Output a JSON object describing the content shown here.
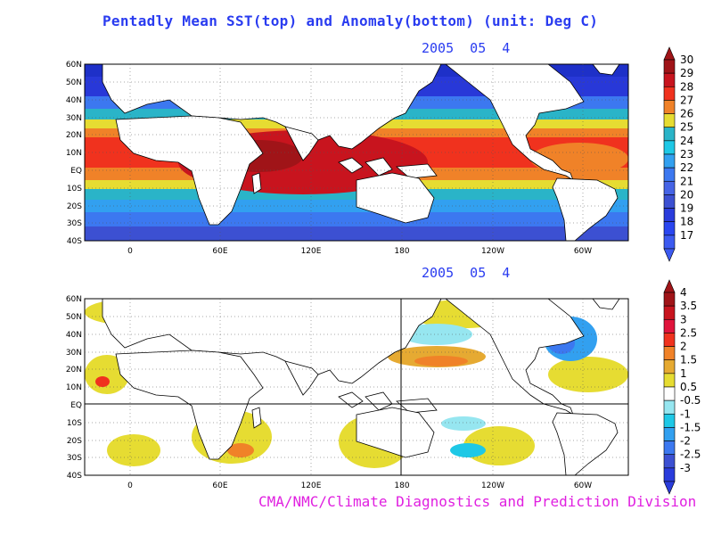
{
  "title": "Pentadly Mean SST(top) and Anomaly(bottom) (unit: Deg C)",
  "top_panel": {
    "date": "2005  05  4"
  },
  "bottom_panel": {
    "date": "2005  05  4"
  },
  "axes": {
    "lat_labels": [
      "60N",
      "50N",
      "40N",
      "30N",
      "20N",
      "10N",
      "EQ",
      "10S",
      "20S",
      "30S",
      "40S"
    ],
    "lon_labels": [
      "0",
      "60E",
      "120E",
      "180",
      "120W",
      "60W"
    ]
  },
  "sst_colorbar": {
    "labels": [
      "30",
      "29",
      "28",
      "27",
      "26",
      "25",
      "24",
      "23",
      "22",
      "21",
      "20",
      "19",
      "18",
      "17"
    ],
    "colors": [
      "#a01418",
      "#c8141e",
      "#f0321e",
      "#f08228",
      "#e6dc32",
      "#2ab4c8",
      "#1ec8e6",
      "#32a0f0",
      "#3c78f0",
      "#4664e6",
      "#3c50d2",
      "#2a3cdc",
      "#2a46f0",
      "#3c5af0"
    ]
  },
  "anom_colorbar": {
    "labels": [
      "4",
      "3.5",
      "3",
      "2.5",
      "2",
      "1.5",
      "1",
      "0.5",
      "-0.5",
      "-1",
      "-1.5",
      "-2",
      "-2.5",
      "-3"
    ],
    "colors": [
      "#a01418",
      "#c8141e",
      "#e0143c",
      "#f0321e",
      "#f08228",
      "#e6aa32",
      "#e6dc32",
      "#ffffff",
      "#96e6f0",
      "#1ec8e6",
      "#32a0f0",
      "#3c78f0",
      "#3c50d2",
      "#2a3cdc"
    ]
  },
  "credit": "CMA/NMC/Climate Diagnostics and Prediction Division"
}
